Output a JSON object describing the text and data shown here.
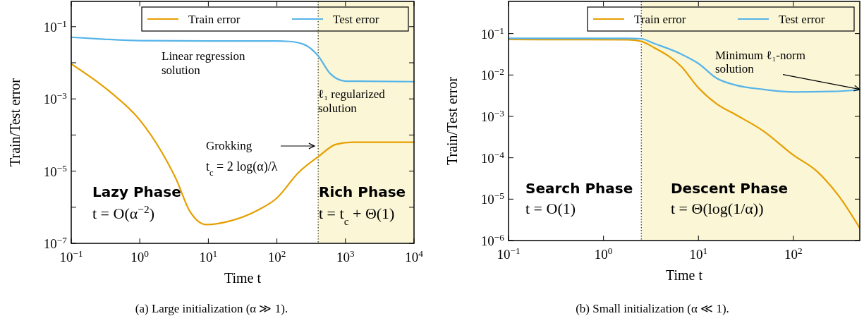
{
  "chart_data": [
    {
      "type": "line",
      "xlabel": "Time t",
      "ylabel": "Train/Test error",
      "log": "xy",
      "xlim": [
        0.1,
        10000
      ],
      "ylim": [
        1e-07,
        0.5
      ],
      "xticks": [
        {
          "value": 0.1,
          "label": "10$^{−1}$"
        },
        {
          "value": 1,
          "label": "10$^{0}$"
        },
        {
          "value": 10,
          "label": "10$^{1}$"
        },
        {
          "value": 100,
          "label": "10$^{2}$"
        },
        {
          "value": 1000,
          "label": "10$^{3}$"
        },
        {
          "value": 10000,
          "label": "10$^{4}$"
        }
      ],
      "yticks": [
        {
          "value": 1e-07,
          "label": "10$^{−7}$"
        },
        {
          "value": 1e-06,
          "label": null
        },
        {
          "value": 1e-05,
          "label": "10$^{−5}$"
        },
        {
          "value": 0.0001,
          "label": null
        },
        {
          "value": 0.001,
          "label": "10$^{−3}$"
        },
        {
          "value": 0.01,
          "label": null
        },
        {
          "value": 0.1,
          "label": "10$^{−1}$"
        }
      ],
      "legend": "top right",
      "grid": false,
      "bands": [
        {
          "axis": "x",
          "from": 400,
          "to": 10000,
          "color": "#faf6d6"
        }
      ],
      "ref_lines": [
        {
          "axis": "x",
          "value": 400,
          "line_style": "dotted",
          "color": "#000000"
        }
      ],
      "series": [
        {
          "name": "Train error",
          "color": "#e69f00",
          "x": [
            0.1,
            0.35,
            1,
            2.1,
            3.4,
            5.4,
            9.4,
            21,
            52,
            100,
            205,
            400,
            730,
            1260,
            10000
          ],
          "values": [
            0.0093,
            0.0017,
            0.00026,
            3.3e-05,
            5.9e-06,
            7.6e-07,
            3.3e-07,
            4.2e-07,
            8.2e-07,
            1.8e-06,
            9e-06,
            2.5e-05,
            5.5e-05,
            6.3e-05,
            6.3e-05
          ]
        },
        {
          "name": "Test error",
          "color": "#56b4e9",
          "x": [
            0.1,
            0.3,
            1,
            10,
            100,
            150,
            250,
            400,
            600,
            1000,
            10000
          ],
          "values": [
            0.051,
            0.045,
            0.041,
            0.04,
            0.04,
            0.039,
            0.032,
            0.0155,
            0.005,
            0.0031,
            0.003
          ]
        }
      ],
      "annotations": [
        "Linear regression solution",
        "ℓ₁ regularized solution",
        "Grokking",
        "t$_{c}$ = 2 log(α)/λ",
        "Lazy Phase",
        "t = O(α$^{−2}$)",
        "Rich Phase",
        "t = t$_{c}$ + Θ(1)",
        "(a) Large initialization (α ≫ 1)."
      ]
    },
    {
      "type": "line",
      "xlabel": "Time t",
      "ylabel": "Train/Test error",
      "log": "xy",
      "xlim": [
        0.1,
        500
      ],
      "ylim": [
        1e-06,
        0.6
      ],
      "xticks": [
        {
          "value": 0.1,
          "label": "10$^{−1}$"
        },
        {
          "value": 1,
          "label": "10$^{0}$"
        },
        {
          "value": 10,
          "label": "10$^{1}$"
        },
        {
          "value": 100,
          "label": "10$^{2}$"
        }
      ],
      "yticks": [
        {
          "value": 1e-06,
          "label": "10$^{−6}$"
        },
        {
          "value": 1e-05,
          "label": "10$^{−5}$"
        },
        {
          "value": 0.0001,
          "label": "10$^{−4}$"
        },
        {
          "value": 0.001,
          "label": "10$^{−3}$"
        },
        {
          "value": 0.01,
          "label": "10$^{−2}$"
        },
        {
          "value": 0.1,
          "label": "10$^{−1}$"
        }
      ],
      "legend": "top right",
      "grid": false,
      "bands": [
        {
          "axis": "x",
          "from": 2.5,
          "to": 500,
          "color": "#faf6d6"
        }
      ],
      "ref_lines": [
        {
          "axis": "x",
          "value": 2.5,
          "line_style": "dotted",
          "color": "#000000"
        }
      ],
      "series": [
        {
          "name": "Train error",
          "color": "#e69f00",
          "x": [
            0.1,
            1.8,
            2.5,
            3.4,
            6.6,
            10,
            15.6,
            24.6,
            47.8,
            100,
            177,
            300,
            500
          ],
          "values": [
            0.072,
            0.071,
            0.065,
            0.046,
            0.016,
            0.0049,
            0.002,
            0.0011,
            0.00045,
            0.000116,
            4.7e-05,
            1.2e-05,
            2e-06
          ]
        },
        {
          "name": "Test error",
          "color": "#56b4e9",
          "x": [
            0.1,
            1.8,
            2.5,
            3.4,
            6.6,
            10,
            15.6,
            24.6,
            47.8,
            100,
            250,
            500
          ],
          "values": [
            0.077,
            0.077,
            0.075,
            0.058,
            0.032,
            0.019,
            0.0083,
            0.0057,
            0.0045,
            0.0039,
            0.004,
            0.0044
          ]
        }
      ],
      "annotations": [
        {
          "text": "Minimum ℓ₁-norm solution",
          "x": 500,
          "y": 0.0045
        },
        "Search Phase",
        "t = O(1)",
        "Descent Phase",
        "t = Θ(log(1/α))",
        "(b) Small initialization (α ≪ 1)."
      ]
    }
  ]
}
